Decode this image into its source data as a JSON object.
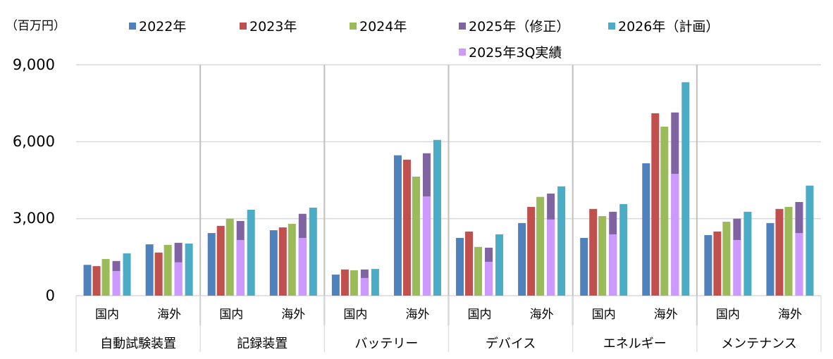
{
  "chart_data": {
    "type": "bar",
    "unit_label": "（百万円）",
    "ylim": [
      0,
      9000
    ],
    "yticks": [
      "9,000",
      "6,000",
      "3,000",
      "0"
    ],
    "ytick_values": [
      9000,
      6000,
      3000,
      0
    ],
    "grid": true,
    "legend_position": "top",
    "categories": [
      "自動試験装置",
      "記録装置",
      "バッテリー",
      "デバイス",
      "エネルギー",
      "メンテナンス"
    ],
    "subcategories": [
      "国内",
      "海外"
    ],
    "colors": {
      "2022": "#4f81bd",
      "2023": "#c0504d",
      "2024": "#9bbb59",
      "2025rev": "#8064a2",
      "2025q3": "#cc99ff",
      "2026": "#4bacc6"
    },
    "legend": [
      {
        "key": "2022",
        "label": "2022年"
      },
      {
        "key": "2023",
        "label": "2023年"
      },
      {
        "key": "2024",
        "label": "2024年"
      },
      {
        "key": "2025rev",
        "label": "2025年（修正）"
      },
      {
        "key": "2026",
        "label": "2026年（計画）"
      },
      {
        "key": "2025q3",
        "label": "2025年3Q実績"
      }
    ],
    "series": [
      {
        "key": "2022",
        "name": "2022年",
        "values": [
          [
            1200,
            2000
          ],
          [
            2440,
            2550
          ],
          [
            820,
            5470
          ],
          [
            2250,
            2830
          ],
          [
            2250,
            5160
          ],
          [
            2360,
            2830
          ]
        ]
      },
      {
        "key": "2023",
        "name": "2023年",
        "values": [
          [
            1150,
            1680
          ],
          [
            2720,
            2660
          ],
          [
            1020,
            5300
          ],
          [
            2500,
            3460
          ],
          [
            3380,
            7110
          ],
          [
            2500,
            3380
          ]
        ]
      },
      {
        "key": "2024",
        "name": "2024年",
        "values": [
          [
            1430,
            1980
          ],
          [
            3000,
            2800
          ],
          [
            990,
            4640
          ],
          [
            1900,
            3850
          ],
          [
            3100,
            6590
          ],
          [
            2880,
            3460
          ]
        ]
      },
      {
        "key": "2025rev",
        "name": "2025年（修正）",
        "values": [
          [
            1350,
            2060
          ],
          [
            2910,
            3190
          ],
          [
            1020,
            5550
          ],
          [
            1870,
            3980
          ],
          [
            3270,
            7140
          ],
          [
            3000,
            3650
          ]
        ]
      },
      {
        "key": "2025q3",
        "name": "2025年3Q実績",
        "overlay_on": "2025rev",
        "values": [
          [
            960,
            1300
          ],
          [
            2170,
            2250
          ],
          [
            690,
            3870
          ],
          [
            1320,
            2970
          ],
          [
            2390,
            4750
          ],
          [
            2170,
            2440
          ]
        ]
      },
      {
        "key": "2026",
        "name": "2026年（計画）",
        "values": [
          [
            1650,
            2030
          ],
          [
            3350,
            3430
          ],
          [
            1040,
            6070
          ],
          [
            2390,
            4260
          ],
          [
            3570,
            8320
          ],
          [
            3270,
            4290
          ]
        ]
      }
    ]
  }
}
